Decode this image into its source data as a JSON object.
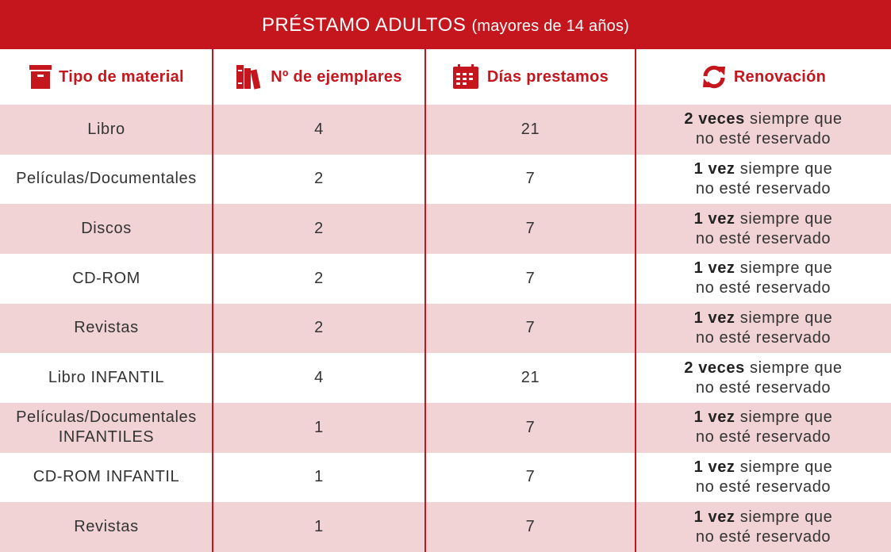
{
  "header": {
    "title": "PRÉSTAMO ADULTOS",
    "subtitle": "(mayores de 14 años)"
  },
  "table": {
    "columns": [
      "Tipo de material",
      "Nº de ejemplares",
      "Días prestamos",
      "Renovación"
    ],
    "rows": [
      {
        "material": "Libro",
        "copies": 4,
        "days": 21,
        "renewal": {
          "bold": "2 veces",
          "line1": "siempre que",
          "line2": "no esté reservado"
        }
      },
      {
        "material": "Películas/Documentales",
        "copies": 2,
        "days": 7,
        "renewal": {
          "bold": "1 vez",
          "line1": "siempre que",
          "line2": "no esté reservado"
        }
      },
      {
        "material": "Discos",
        "copies": 2,
        "days": 7,
        "renewal": {
          "bold": "1 vez",
          "line1": "siempre que",
          "line2": "no esté reservado"
        }
      },
      {
        "material": "CD-ROM",
        "copies": 2,
        "days": 7,
        "renewal": {
          "bold": "1 vez",
          "line1": "siempre que",
          "line2": "no esté reservado"
        }
      },
      {
        "material": "Revistas",
        "copies": 2,
        "days": 7,
        "renewal": {
          "bold": "1 vez",
          "line1": "siempre que",
          "line2": "no esté reservado"
        }
      },
      {
        "material": "Libro INFANTIL",
        "copies": 4,
        "days": 21,
        "renewal": {
          "bold": "2 veces",
          "line1": "siempre que",
          "line2": "no esté reservado"
        }
      },
      {
        "material": "Películas/Documentales INFANTILES",
        "copies": 1,
        "days": 7,
        "renewal": {
          "bold": "1 vez",
          "line1": "siempre que",
          "line2": "no esté reservado"
        }
      },
      {
        "material": "CD-ROM INFANTIL",
        "copies": 1,
        "days": 7,
        "renewal": {
          "bold": "1 vez",
          "line1": "siempre que",
          "line2": "no esté reservado"
        }
      },
      {
        "material": "Revistas",
        "copies": 1,
        "days": 7,
        "renewal": {
          "bold": "1 vez",
          "line1": "siempre que",
          "line2": "no esté reservado"
        }
      }
    ]
  }
}
